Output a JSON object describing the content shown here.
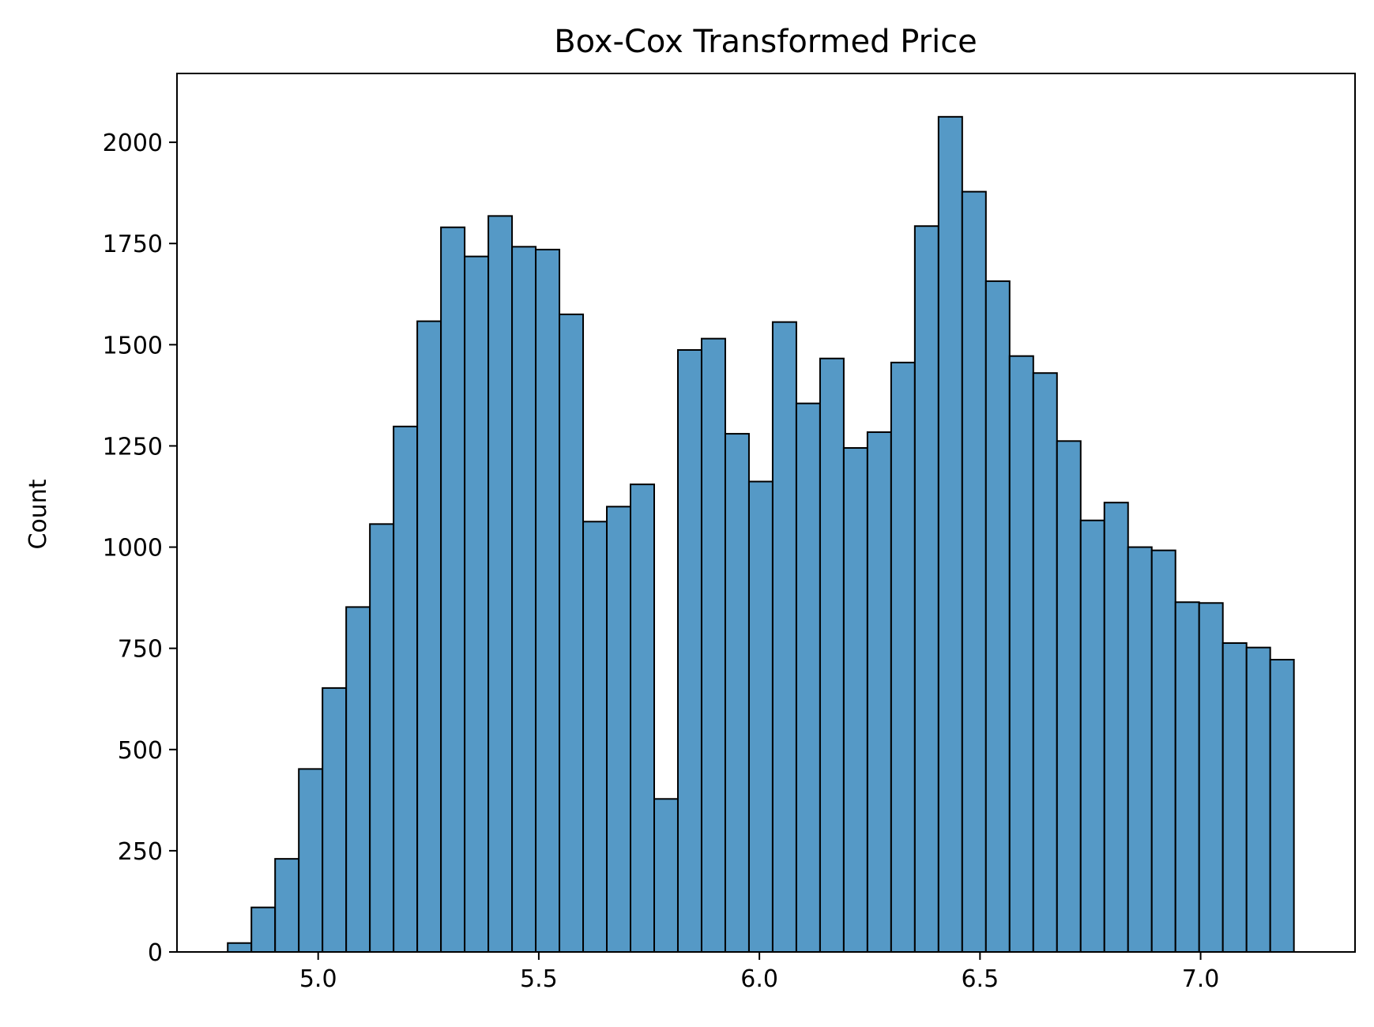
{
  "chart_data": {
    "type": "bar",
    "title": "Box-Cox Transformed Price",
    "xlabel": "",
    "ylabel": "Count",
    "xlim": [
      4.68,
      7.35
    ],
    "ylim": [
      0,
      2170
    ],
    "x_ticks": [
      "5.0",
      "5.5",
      "6.0",
      "6.5",
      "7.0"
    ],
    "x_tick_values": [
      5.0,
      5.5,
      6.0,
      6.5,
      7.0
    ],
    "y_ticks": [
      "0",
      "250",
      "500",
      "750",
      "1000",
      "1250",
      "1500",
      "1750",
      "2000"
    ],
    "y_tick_values": [
      0,
      250,
      500,
      750,
      1000,
      1250,
      1500,
      1750,
      2000
    ],
    "bin_start": 4.795,
    "bin_width": 0.0537,
    "values": [
      22,
      110,
      230,
      452,
      652,
      852,
      1057,
      1298,
      1558,
      1790,
      1718,
      1818,
      1742,
      1735,
      1575,
      1063,
      1100,
      1155,
      378,
      1487,
      1515,
      1280,
      1162,
      1556,
      1355,
      1466,
      1245,
      1284,
      1456,
      1793,
      2063,
      1878,
      1657,
      1472,
      1430,
      1262,
      1066,
      1110,
      1000,
      992,
      864,
      862,
      763,
      752,
      722
    ],
    "bar_color": "#5599c6",
    "edge_color": "#000000",
    "grid": false
  }
}
